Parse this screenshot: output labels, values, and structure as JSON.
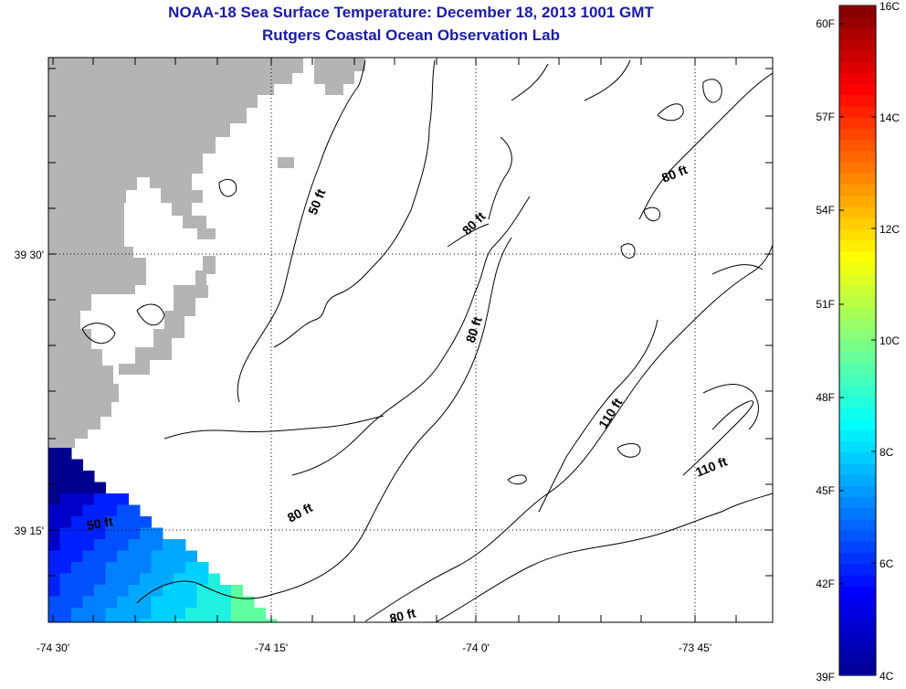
{
  "title": "NOAA-18 Sea Surface Temperature:  December 18, 2013 1001 GMT",
  "subtitle": "Rutgers Coastal Ocean Observation Lab",
  "axes": {
    "x_ticks": [
      "-74 30'",
      "-74 15'",
      "-74 0'",
      "-73 45'"
    ],
    "y_ticks": [
      "39 30'",
      "39 15'"
    ]
  },
  "contour_labels": [
    "50 ft",
    "80 ft",
    "80 ft",
    "80 ft",
    "80 ft",
    "110 ft",
    "110 ft",
    "50 ft",
    "80 ft"
  ],
  "colorbar": {
    "fahrenheit": [
      "60F",
      "57F",
      "54F",
      "51F",
      "48F",
      "45F",
      "42F",
      "39F"
    ],
    "celsius": [
      "16C",
      "14C",
      "12C",
      "10C",
      "8C",
      "6C",
      "4C"
    ],
    "range_c": [
      4,
      16
    ]
  },
  "colors": {
    "land": "#b4b4b4",
    "title": "#1a1aa8"
  }
}
